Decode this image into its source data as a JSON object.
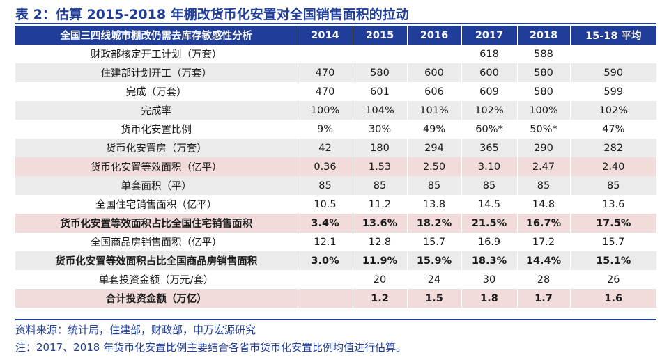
{
  "title": "表 2：估算 2015-2018 年棚改货币化安置对全国销售面积的拉动",
  "table": {
    "headers": [
      "全国三四线城市棚改仍需去库存敏感性分析",
      "2014",
      "2015",
      "2016",
      "2017",
      "2018",
      "15-18 平均"
    ],
    "rows": [
      {
        "style": "white",
        "bold": false,
        "cells": [
          "财政部核定开工计划（万套）",
          "",
          "",
          "",
          "618",
          "588",
          ""
        ]
      },
      {
        "style": "grey",
        "bold": false,
        "cells": [
          "住建部计划开工（万套）",
          "470",
          "580",
          "600",
          "600",
          "580",
          "590"
        ]
      },
      {
        "style": "white",
        "bold": false,
        "cells": [
          "完成（万套）",
          "470",
          "601",
          "606",
          "609",
          "580",
          "599"
        ]
      },
      {
        "style": "grey",
        "bold": false,
        "cells": [
          "完成率",
          "100%",
          "104%",
          "101%",
          "102%",
          "100%",
          "102%"
        ]
      },
      {
        "style": "white",
        "bold": false,
        "cells": [
          "货币化安置比例",
          "9%",
          "30%",
          "49%",
          "60%*",
          "50%*",
          "47%"
        ]
      },
      {
        "style": "grey",
        "bold": false,
        "cells": [
          "货币化安置房（万套）",
          "42",
          "180",
          "294",
          "365",
          "290",
          "282"
        ]
      },
      {
        "style": "pink",
        "bold": false,
        "cells": [
          "货币化安置等效面积（亿平）",
          "0.36",
          "1.53",
          "2.50",
          "3.10",
          "2.47",
          "2.40"
        ]
      },
      {
        "style": "grey",
        "bold": false,
        "cells": [
          "单套面积（平）",
          "85",
          "85",
          "85",
          "85",
          "85",
          "85"
        ]
      },
      {
        "style": "white",
        "bold": false,
        "cells": [
          "全国住宅销售面积（亿平）",
          "10.5",
          "11.2",
          "13.8",
          "14.5",
          "14.8",
          "13.6"
        ]
      },
      {
        "style": "pink",
        "bold": true,
        "cells": [
          "货币化安置等效面积占比全国住宅销售面积",
          "3.4%",
          "13.6%",
          "18.2%",
          "21.5%",
          "16.7%",
          "17.5%"
        ]
      },
      {
        "style": "white",
        "bold": false,
        "cells": [
          "全国商品房销售面积（亿平）",
          "12.1",
          "12.8",
          "15.7",
          "16.9",
          "17.2",
          "15.7"
        ]
      },
      {
        "style": "grey",
        "bold": true,
        "cells": [
          "货币化安置等效面积占比全国商品房销售面积",
          "3.0%",
          "11.9%",
          "15.9%",
          "18.3%",
          "14.4%",
          "15.1%"
        ]
      },
      {
        "style": "white",
        "bold": false,
        "cells": [
          "单套投资金额（万元/套）",
          "",
          "20",
          "24",
          "30",
          "28",
          "26"
        ]
      },
      {
        "style": "pink",
        "bold": true,
        "cells": [
          "合计投资金额（万亿）",
          "",
          "1.2",
          "1.5",
          "1.8",
          "1.7",
          "1.6"
        ]
      }
    ]
  },
  "source": "资料来源：统计局，住建部，财政部，申万宏源研究",
  "note": "注：2017、2018 年货币化安置比例主要结合各省市货币化安置比例均值进行估算。"
}
